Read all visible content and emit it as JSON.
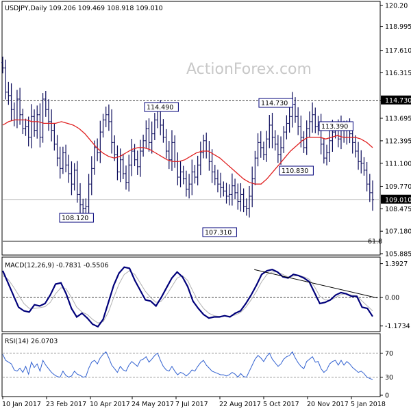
{
  "header": {
    "symbol_line": "USDJPY,Daily  109.206 109.469 108.918 109.010",
    "watermark": "ActionForex.com"
  },
  "colors": {
    "candle": "#0a0a5a",
    "moving_average": "#e02020",
    "macd": "#00007a",
    "signal": "#b0b0b0",
    "trendline": "#000000",
    "rsi": "#3060d0"
  },
  "chart_data": [
    {
      "type": "candlestick",
      "title": "USDJPY,Daily",
      "ohlc_last": {
        "open": 109.206,
        "high": 109.469,
        "low": 108.918,
        "close": 109.01
      },
      "ylim": [
        105.885,
        120.2
      ],
      "y_ticks": [
        "120.20",
        "118.995",
        "117.610",
        "116.315",
        "114.730",
        "113.695",
        "112.395",
        "111.100",
        "109.770",
        "108.475",
        "107.180",
        "105.885"
      ],
      "x_ticks": [
        "10 Jan 2017",
        "23 Feb 2017",
        "10 Apr 2017",
        "24 May 2017",
        "7 Jul 2017",
        "22 Aug 2017",
        "5 Oct 2017",
        "20 Nov 2017",
        "5 Jan 2018"
      ],
      "last_price_label": "109.010",
      "resistance_level": 114.73,
      "resistance_label": "114.730",
      "fib_label": "61.8",
      "fib_level": 106.6,
      "annotations": [
        {
          "label": "114.490",
          "value": 114.49
        },
        {
          "label": "114.730",
          "value": 114.73
        },
        {
          "label": "113.390",
          "value": 113.39
        },
        {
          "label": "110.830",
          "value": 110.83
        },
        {
          "label": "108.120",
          "value": 108.12
        },
        {
          "label": "107.310",
          "value": 107.31
        }
      ],
      "close": [
        116.6,
        115.2,
        115.0,
        114.2,
        113.6,
        114.8,
        113.9,
        113.1,
        113.2,
        112.6,
        113.8,
        113.0,
        113.9,
        112.6,
        114.8,
        114.2,
        113.5,
        113.0,
        112.2,
        111.4,
        110.8,
        111.7,
        111.0,
        110.5,
        109.9,
        110.7,
        109.3,
        108.7,
        108.5,
        108.6,
        109.9,
        110.8,
        112.0,
        111.7,
        112.9,
        113.6,
        113.9,
        113.5,
        112.3,
        111.6,
        110.6,
        111.3,
        110.5,
        110.0,
        111.0,
        111.8,
        111.3,
        110.9,
        111.8,
        112.4,
        113.1,
        112.3,
        112.8,
        113.6,
        114.1,
        113.3,
        112.6,
        111.8,
        111.3,
        112.3,
        111.2,
        110.3,
        110.6,
        110.2,
        109.6,
        109.9,
        110.6,
        110.3,
        111.0,
        111.7,
        112.4,
        111.8,
        111.2,
        110.6,
        110.2,
        109.9,
        109.7,
        109.5,
        109.2,
        109.3,
        109.8,
        109.4,
        108.9,
        109.3,
        108.6,
        108.5,
        109.2,
        110.2,
        111.4,
        112.3,
        112.0,
        111.6,
        112.5,
        113.3,
        112.6,
        112.2,
        111.6,
        112.0,
        112.9,
        113.4,
        113.8,
        114.5,
        113.8,
        113.2,
        112.6,
        112.0,
        113.1,
        113.5,
        113.9,
        113.2,
        113.3,
        112.2,
        111.4,
        111.7,
        112.4,
        112.9,
        113.1,
        112.5,
        113.2,
        112.6,
        113.1,
        112.8,
        112.3,
        111.8,
        111.2,
        111.1,
        110.7,
        109.9,
        109.4,
        109.0
      ],
      "ma50": [
        113.3,
        113.5,
        113.6,
        113.6,
        113.6,
        113.5,
        113.5,
        113.4,
        113.4,
        113.4,
        113.5,
        113.4,
        113.3,
        113.1,
        112.8,
        112.4,
        112.0,
        111.7,
        111.5,
        111.4,
        111.5,
        111.7,
        111.9,
        112.0,
        112.0,
        111.9,
        111.7,
        111.5,
        111.3,
        111.2,
        111.2,
        111.3,
        111.5,
        111.7,
        111.8,
        111.8,
        111.6,
        111.4,
        111.1,
        110.8,
        110.5,
        110.2,
        110.0,
        109.9,
        109.9,
        110.2,
        110.6,
        111.0,
        111.4,
        111.8,
        112.1,
        112.4,
        112.6,
        112.6,
        112.6,
        112.5,
        112.6,
        112.7,
        112.6,
        112.6,
        112.6,
        112.5,
        112.3,
        112.0
      ],
      "macd_ylim": [
        -1.35,
        1.55
      ],
      "macd_ticks": [
        "1.3927",
        "0.00",
        "-1.1734"
      ],
      "macd_label": "MACD(12,26,9) -0.7831 -0.5506",
      "macd": [
        1.1,
        0.6,
        0.1,
        -0.4,
        -0.55,
        -0.6,
        -0.3,
        -0.35,
        -0.25,
        0.1,
        0.55,
        0.6,
        0.15,
        -0.45,
        -0.8,
        -0.65,
        -0.85,
        -1.1,
        -1.2,
        -0.9,
        -0.2,
        0.5,
        1.0,
        1.25,
        1.2,
        0.7,
        0.3,
        -0.1,
        -0.15,
        -0.35,
        0.0,
        0.4,
        0.8,
        1.05,
        0.85,
        0.45,
        -0.15,
        -0.45,
        -0.7,
        -0.85,
        -0.8,
        -0.8,
        -0.75,
        -0.8,
        -0.65,
        -0.55,
        -0.25,
        0.1,
        0.5,
        0.95,
        1.1,
        1.15,
        1.05,
        0.85,
        0.8,
        0.95,
        0.9,
        0.8,
        0.65,
        0.2,
        -0.25,
        -0.2,
        -0.1,
        0.1,
        0.2,
        0.15,
        0.05,
        0.05,
        -0.4,
        -0.45,
        -0.78
      ],
      "signal": [
        0.9,
        0.75,
        0.45,
        0.1,
        -0.25,
        -0.45,
        -0.45,
        -0.42,
        -0.38,
        -0.2,
        0.15,
        0.4,
        0.35,
        0.0,
        -0.4,
        -0.6,
        -0.7,
        -0.9,
        -1.05,
        -1.0,
        -0.6,
        0.0,
        0.55,
        0.95,
        1.1,
        0.95,
        0.6,
        0.25,
        0.0,
        -0.2,
        -0.15,
        0.1,
        0.45,
        0.8,
        0.9,
        0.7,
        0.25,
        -0.15,
        -0.45,
        -0.65,
        -0.75,
        -0.78,
        -0.76,
        -0.77,
        -0.72,
        -0.62,
        -0.4,
        -0.1,
        0.25,
        0.65,
        0.95,
        1.05,
        1.05,
        0.95,
        0.85,
        0.88,
        0.9,
        0.85,
        0.75,
        0.45,
        0.05,
        -0.1,
        -0.12,
        0.0,
        0.12,
        0.15,
        0.1,
        0.07,
        -0.15,
        -0.35,
        -0.55
      ],
      "macd_trendline": [
        [
          0.68,
          1.15
        ],
        [
          0.99,
          0.0
        ]
      ],
      "rsi_label": "RSI(14) 26.0703",
      "rsi_ylim": [
        0,
        100
      ],
      "rsi_ticks": [
        "70",
        "30",
        "0"
      ],
      "rsi": [
        68,
        58,
        55,
        52,
        42,
        40,
        45,
        38,
        48,
        35,
        55,
        46,
        52,
        40,
        58,
        50,
        44,
        38,
        34,
        31,
        30,
        40,
        33,
        30,
        32,
        40,
        35,
        33,
        30,
        31,
        45,
        55,
        58,
        52,
        62,
        68,
        72,
        62,
        50,
        44,
        38,
        48,
        42,
        40,
        50,
        56,
        52,
        48,
        58,
        60,
        64,
        55,
        60,
        66,
        70,
        58,
        48,
        42,
        40,
        48,
        40,
        34,
        38,
        36,
        32,
        36,
        42,
        40,
        48,
        54,
        58,
        50,
        45,
        40,
        38,
        36,
        34,
        34,
        32,
        34,
        38,
        35,
        30,
        36,
        31,
        30,
        40,
        50,
        60,
        66,
        62,
        56,
        64,
        70,
        60,
        54,
        48,
        52,
        60,
        64,
        66,
        72,
        62,
        54,
        48,
        44,
        56,
        60,
        64,
        55,
        56,
        44,
        38,
        42,
        52,
        56,
        58,
        50,
        58,
        50,
        56,
        52,
        46,
        42,
        38,
        40,
        36,
        30,
        28,
        26
      ]
    }
  ]
}
